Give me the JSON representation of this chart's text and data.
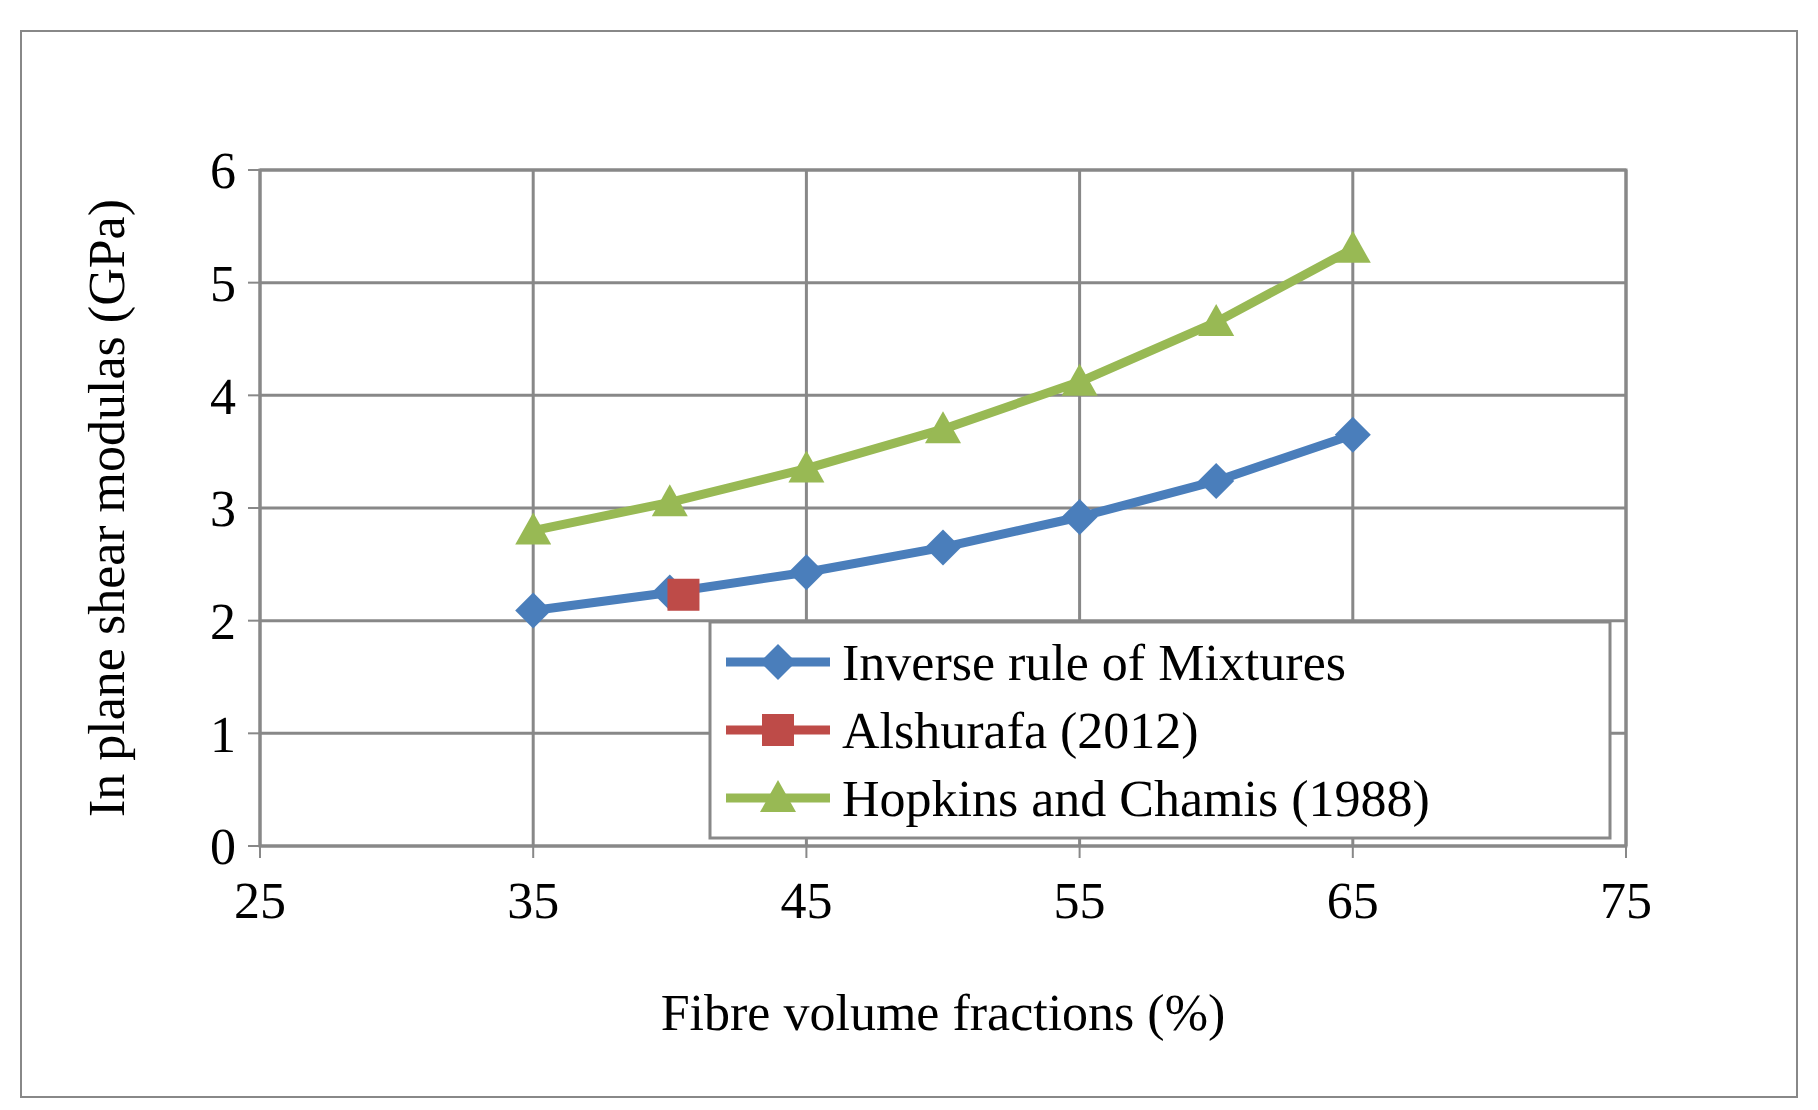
{
  "chart_data": {
    "type": "line",
    "xlabel": "Fibre volume fractions (%)",
    "ylabel": "In plane shear modulas (GPa)",
    "xlim": [
      25,
      75
    ],
    "xticks": [
      25,
      35,
      45,
      55,
      65,
      75
    ],
    "ylim": [
      0,
      6
    ],
    "yticks": [
      0,
      1,
      2,
      3,
      4,
      5,
      6
    ],
    "grid": true,
    "legend": "bottom right",
    "line_style": "solid",
    "series": [
      {
        "name": "Inverse rule of Mixtures",
        "color": "#4a7ebb",
        "marker": "diamond",
        "x": [
          35,
          40,
          45,
          50,
          55,
          60,
          65
        ],
        "values": [
          2.09,
          2.25,
          2.43,
          2.65,
          2.92,
          3.24,
          3.65
        ]
      },
      {
        "name": "Alshurafa (2012)",
        "color": "#be4b48",
        "marker": "square",
        "x": [
          40.5
        ],
        "values": [
          2.23
        ]
      },
      {
        "name": "Hopkins and Chamis (1988)",
        "color": "#98b954",
        "marker": "triangle",
        "x": [
          35,
          40,
          45,
          50,
          55,
          60,
          65
        ],
        "values": [
          2.8,
          3.05,
          3.35,
          3.7,
          4.12,
          4.65,
          5.3
        ]
      }
    ]
  }
}
